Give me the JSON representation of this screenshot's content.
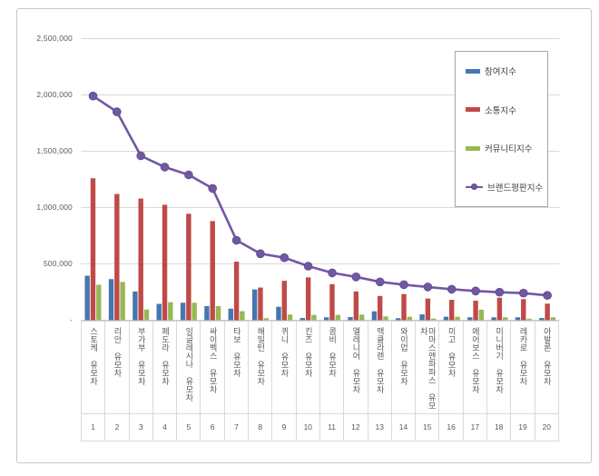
{
  "y_axis": {
    "tick_labels": [
      "2,500,000",
      "2,000,000",
      "1,500,000",
      "1,000,000",
      "500,000",
      "-"
    ],
    "tick_values": [
      2500000,
      2000000,
      1500000,
      1000000,
      500000,
      0
    ]
  },
  "colors": {
    "grid": "#d9d9d9",
    "axis_text": "#595959",
    "box_border": "#d9d9d9",
    "legend_border": "#a6a6a6",
    "frame_border": "#c6c6c6"
  },
  "chart_data": {
    "type": "bar",
    "title": "",
    "xlabel": "",
    "ylabel": "",
    "ylim": [
      0,
      2500000
    ],
    "grid": true,
    "legend_position": "top-right",
    "categories": [
      "스토케 유모차",
      "리안 유모차",
      "부가부 유모차",
      "페도라 유모차",
      "잉글레시나 유모차",
      "싸이벡스 유모차",
      "타보 유모차",
      "해밀턴 유모차",
      "퀴니 유모차",
      "킨즈 유모차",
      "콤비 유모차",
      "엘레니어 유모차",
      "맥클라렌 유모차",
      "와이업 유모차",
      "마마스앤파파스 유모차",
      "미고 유모차",
      "에어보스 유모차",
      "미니버기 유모차",
      "레카로 유모차",
      "아발론 유모차"
    ],
    "rank_labels": [
      "1",
      "2",
      "3",
      "4",
      "5",
      "6",
      "7",
      "8",
      "9",
      "10",
      "11",
      "12",
      "13",
      "14",
      "15",
      "16",
      "17",
      "18",
      "19",
      "20"
    ],
    "series": [
      {
        "name": "참여지수",
        "type": "bar",
        "color": "#4676b0",
        "values": [
          395000,
          365000,
          255000,
          145000,
          155000,
          125000,
          103000,
          273000,
          119000,
          20000,
          26000,
          28000,
          79000,
          18000,
          52000,
          31000,
          26000,
          26000,
          26000,
          20000
        ]
      },
      {
        "name": "소통지수",
        "type": "bar",
        "color": "#bf4a47",
        "values": [
          1260000,
          1120000,
          1080000,
          1025000,
          945000,
          880000,
          520000,
          290000,
          350000,
          380000,
          320000,
          255000,
          215000,
          232000,
          192000,
          181000,
          173000,
          200000,
          187000,
          147000
        ]
      },
      {
        "name": "커뮤니티지수",
        "type": "bar",
        "color": "#98b854",
        "values": [
          315000,
          340000,
          95000,
          160000,
          155000,
          125000,
          80000,
          18000,
          50000,
          47000,
          47000,
          50000,
          34000,
          31000,
          14000,
          31000,
          93000,
          26000,
          13000,
          26000
        ]
      },
      {
        "name": "브랜드평판지수",
        "type": "line",
        "color": "#7158a3",
        "values": [
          1990000,
          1850000,
          1460000,
          1360000,
          1290000,
          1170000,
          710000,
          590000,
          555000,
          480000,
          420000,
          385000,
          340000,
          315000,
          295000,
          275000,
          260000,
          248000,
          240000,
          220000
        ]
      }
    ]
  }
}
